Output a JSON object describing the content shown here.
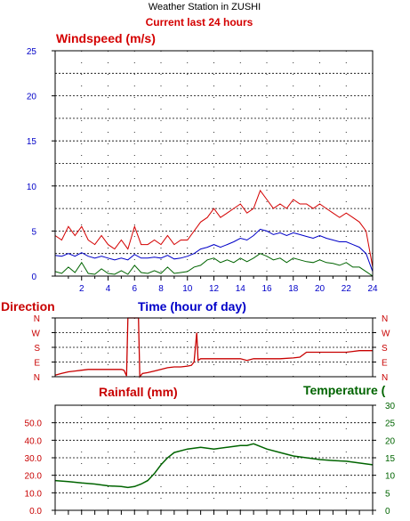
{
  "header": {
    "title": "Weather Station in ZUSHI",
    "subtitle": "Current last 24 hours"
  },
  "colors": {
    "speed_max": "#d40000",
    "speed_avg": "#0000c8",
    "speed_min": "#006400",
    "direction": "#c80000",
    "temperature": "#006400",
    "rainfall": "#c80000",
    "time_label": "#0000c8"
  },
  "chart_data": [
    {
      "type": "line",
      "title": "Windspeed (m/s)",
      "xlabel": "Time (hour of day)",
      "x_ticks": [
        "2",
        "4",
        "6",
        "8",
        "10",
        "12",
        "14",
        "16",
        "18",
        "20",
        "22",
        "24"
      ],
      "y_ticks": [
        "0",
        "5",
        "10",
        "15",
        "20",
        "25"
      ],
      "xlim": [
        0,
        24
      ],
      "ylim": [
        0,
        25
      ],
      "grid": true,
      "x": [
        0,
        0.5,
        1,
        1.5,
        2,
        2.5,
        3,
        3.5,
        4,
        4.5,
        5,
        5.5,
        6,
        6.5,
        7,
        7.5,
        8,
        8.5,
        9,
        9.5,
        10,
        10.5,
        11,
        11.5,
        12,
        12.5,
        13,
        13.5,
        14,
        14.5,
        15,
        15.5,
        16,
        16.5,
        17,
        17.5,
        18,
        18.5,
        19,
        19.5,
        20,
        20.5,
        21,
        21.5,
        22,
        22.5,
        23,
        23.5,
        24
      ],
      "series": [
        {
          "key": "max",
          "values": [
            4.5,
            4.0,
            5.5,
            4.5,
            5.5,
            4.0,
            3.5,
            4.5,
            3.5,
            3.0,
            4.0,
            3.0,
            5.5,
            3.5,
            3.5,
            4.0,
            3.5,
            4.5,
            3.5,
            4.0,
            4.0,
            5.0,
            6.0,
            6.5,
            7.5,
            6.5,
            7.0,
            7.5,
            8.0,
            7.0,
            7.5,
            9.5,
            8.5,
            7.5,
            8.0,
            7.5,
            8.5,
            8.0,
            8.0,
            7.5,
            8.0,
            7.5,
            7.0,
            6.5,
            7.0,
            6.5,
            6.0,
            5.0,
            1.0
          ]
        },
        {
          "key": "avg",
          "values": [
            2.3,
            2.2,
            2.5,
            2.2,
            2.6,
            2.2,
            2.0,
            2.2,
            2.0,
            1.8,
            2.0,
            1.8,
            2.4,
            2.0,
            2.0,
            2.1,
            2.0,
            2.3,
            1.9,
            2.0,
            2.2,
            2.5,
            3.0,
            3.2,
            3.5,
            3.2,
            3.5,
            3.8,
            4.2,
            4.0,
            4.5,
            5.2,
            5.0,
            4.6,
            4.8,
            4.5,
            4.8,
            4.6,
            4.4,
            4.2,
            4.5,
            4.2,
            4.0,
            3.8,
            3.8,
            3.5,
            3.2,
            2.5,
            0.5
          ]
        },
        {
          "key": "min",
          "values": [
            0.5,
            0.3,
            1.0,
            0.4,
            1.5,
            0.3,
            0.2,
            0.8,
            0.3,
            0.2,
            0.6,
            0.2,
            1.2,
            0.4,
            0.3,
            0.6,
            0.3,
            1.0,
            0.3,
            0.4,
            0.5,
            1.0,
            1.2,
            1.8,
            2.0,
            1.5,
            1.8,
            1.5,
            2.0,
            1.6,
            2.0,
            2.5,
            2.2,
            1.8,
            2.0,
            1.5,
            2.0,
            1.8,
            1.6,
            1.5,
            1.8,
            1.5,
            1.4,
            1.2,
            1.5,
            1.0,
            1.0,
            0.5,
            0.0
          ]
        }
      ]
    },
    {
      "type": "line",
      "title": "Direction",
      "y_ticks": [
        "N",
        "W",
        "S",
        "E",
        "N"
      ],
      "ylim": [
        0,
        360
      ],
      "grid": true,
      "x": [
        0,
        0.5,
        1,
        1.5,
        2,
        2.5,
        3,
        3.5,
        4,
        4.5,
        5,
        5.2,
        5.4,
        5.5,
        6,
        6.3,
        6.4,
        6.6,
        7,
        7.5,
        8,
        8.5,
        9,
        9.5,
        10,
        10.3,
        10.5,
        10.7,
        10.8,
        11,
        11.5,
        12,
        13,
        14,
        14.5,
        15,
        16,
        17,
        18,
        18.5,
        19,
        20,
        21,
        22,
        22.5,
        23,
        23.5,
        24
      ],
      "series": [
        {
          "key": "direction",
          "values": [
            10,
            20,
            30,
            35,
            40,
            45,
            45,
            45,
            45,
            45,
            45,
            40,
            5,
            360,
            360,
            360,
            0,
            20,
            25,
            35,
            45,
            55,
            60,
            60,
            65,
            70,
            90,
            270,
            100,
            110,
            110,
            110,
            110,
            110,
            100,
            110,
            110,
            110,
            115,
            120,
            150,
            150,
            150,
            150,
            155,
            160,
            160,
            160
          ]
        }
      ]
    },
    {
      "type": "line",
      "title": "Temperature (",
      "x_ticks": [],
      "y_ticks": [
        "0",
        "5",
        "10",
        "15",
        "20",
        "25",
        "30"
      ],
      "ylim": [
        0,
        30
      ],
      "grid": true,
      "x": [
        0,
        1,
        2,
        3,
        4,
        5,
        5.5,
        6,
        6.5,
        7,
        7.5,
        8,
        8.5,
        9,
        10,
        11,
        12,
        13,
        14,
        14.5,
        15,
        16,
        17,
        18,
        19,
        20,
        21,
        22,
        23,
        24
      ],
      "series": [
        {
          "key": "temperature",
          "values": [
            8.5,
            8.2,
            7.8,
            7.5,
            7.0,
            6.8,
            6.5,
            6.8,
            7.5,
            8.5,
            10.5,
            13,
            15,
            16.5,
            17.5,
            18,
            17.5,
            18,
            18.5,
            18.5,
            19,
            17.5,
            16.5,
            15.5,
            15,
            14.5,
            14.2,
            14,
            13.5,
            13
          ]
        }
      ]
    },
    {
      "type": "line",
      "title": "Rainfall (mm)",
      "y_ticks": [
        "0.0",
        "10.0",
        "20.0",
        "30.0",
        "40.0",
        "50.0"
      ],
      "ylim": [
        0,
        60
      ],
      "grid": true,
      "series": [
        {
          "key": "rainfall",
          "values": []
        }
      ]
    }
  ]
}
